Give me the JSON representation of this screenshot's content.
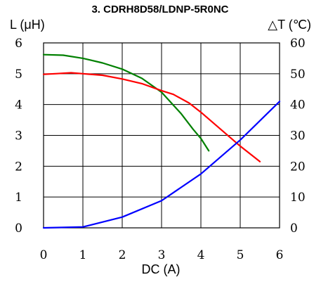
{
  "chart_data": {
    "type": "line",
    "title": "3. CDRH8D58/LDNP-5R0NC",
    "xlabel": "DC (A)",
    "ylabel_left": "L (μH)",
    "ylabel_right": "△T (℃)",
    "xlim": [
      0,
      6
    ],
    "ylim_left": [
      0,
      6
    ],
    "ylim_right": [
      0,
      60
    ],
    "x_ticks": [
      "0",
      "1",
      "2",
      "3",
      "4",
      "5",
      "6"
    ],
    "y_left_ticks": [
      "0",
      "1",
      "2",
      "3",
      "4",
      "5",
      "6"
    ],
    "y_right_ticks": [
      "0",
      "10",
      "20",
      "30",
      "40",
      "50",
      "60"
    ],
    "grid": true,
    "series": [
      {
        "axis": "left",
        "color": "#008000",
        "points": [
          [
            0,
            5.62
          ],
          [
            0.5,
            5.6
          ],
          [
            1.0,
            5.5
          ],
          [
            1.5,
            5.35
          ],
          [
            2.0,
            5.15
          ],
          [
            2.5,
            4.85
          ],
          [
            3.0,
            4.4
          ],
          [
            3.5,
            3.7
          ],
          [
            3.8,
            3.2
          ],
          [
            4.0,
            2.9
          ],
          [
            4.2,
            2.5
          ]
        ]
      },
      {
        "axis": "left",
        "color": "#ff0000",
        "points": [
          [
            0,
            4.98
          ],
          [
            0.3,
            5.0
          ],
          [
            0.7,
            5.03
          ],
          [
            1.0,
            5.0
          ],
          [
            1.5,
            4.95
          ],
          [
            2.0,
            4.83
          ],
          [
            2.5,
            4.68
          ],
          [
            3.0,
            4.45
          ],
          [
            3.3,
            4.33
          ],
          [
            3.7,
            4.05
          ],
          [
            4.0,
            3.75
          ],
          [
            4.5,
            3.2
          ],
          [
            5.0,
            2.65
          ],
          [
            5.5,
            2.15
          ]
        ]
      },
      {
        "axis": "right",
        "color": "#0000ff",
        "points": [
          [
            0,
            0
          ],
          [
            1.0,
            0.3
          ],
          [
            2.0,
            3.5
          ],
          [
            3.0,
            8.8
          ],
          [
            4.0,
            17.5
          ],
          [
            5.0,
            28.5
          ],
          [
            6.0,
            41
          ]
        ]
      }
    ]
  }
}
